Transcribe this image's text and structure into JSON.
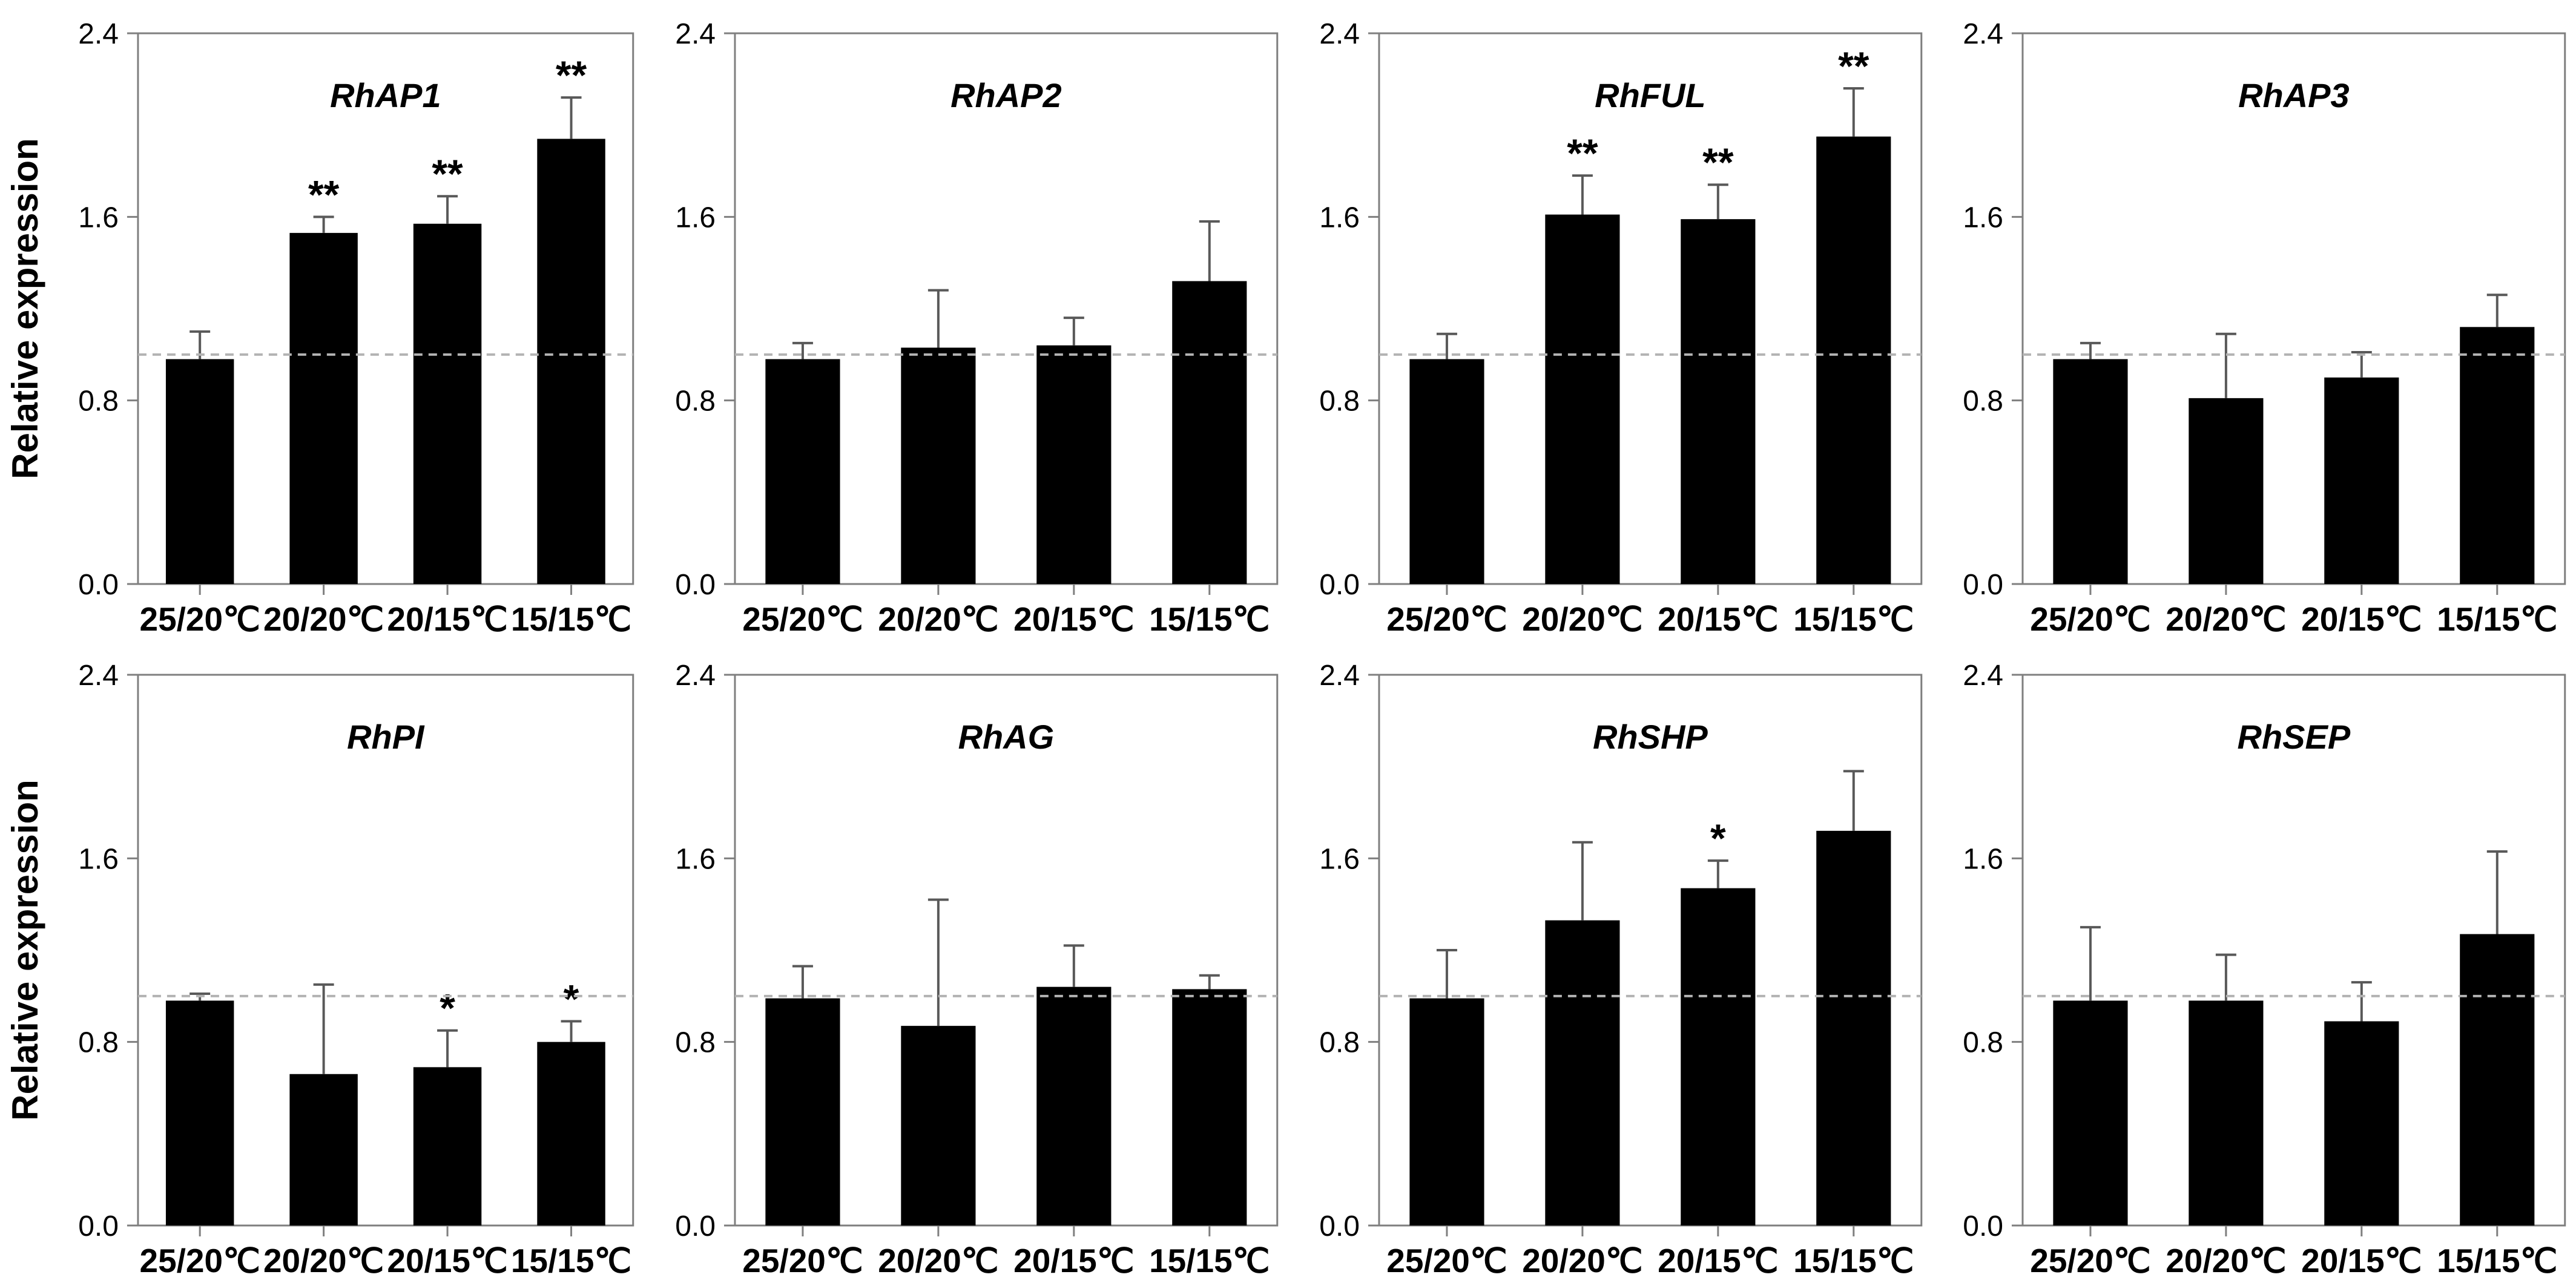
{
  "figure": {
    "ylabel": "Relative expression",
    "ytick_labels": [
      "0.0",
      "0.8",
      "1.6",
      "2.4"
    ],
    "yticks": [
      0.0,
      0.8,
      1.6,
      2.4
    ],
    "ylim": [
      0,
      2.4
    ],
    "baseline_value": 1.0,
    "grid": "off",
    "legend": "none",
    "colors": {
      "bar": "#000000",
      "axis": "#7f7f7f",
      "error_bar": "#595959",
      "baseline_dash": "#b3b3b3",
      "text": "#000000",
      "background": "#ffffff"
    }
  },
  "chart_data": [
    {
      "type": "bar",
      "title": "RhAP1",
      "row": 0,
      "col": 0,
      "show_ylabel": true,
      "categories": [
        "25/20℃",
        "20/20℃",
        "20/15℃",
        "15/15℃"
      ],
      "values": [
        0.98,
        1.53,
        1.57,
        1.94
      ],
      "errors": [
        0.12,
        0.07,
        0.12,
        0.18
      ],
      "sig": [
        "",
        "**",
        "**",
        "**"
      ],
      "xlabel": "",
      "ylabel": "Relative expression",
      "ylim": [
        0,
        2.4
      ]
    },
    {
      "type": "bar",
      "title": "RhAP2",
      "row": 0,
      "col": 1,
      "show_ylabel": false,
      "categories": [
        "25/20℃",
        "20/20℃",
        "20/15℃",
        "15/15℃"
      ],
      "values": [
        0.98,
        1.03,
        1.04,
        1.32
      ],
      "errors": [
        0.07,
        0.25,
        0.12,
        0.26
      ],
      "sig": [
        "",
        "",
        "",
        ""
      ],
      "xlabel": "",
      "ylabel": "",
      "ylim": [
        0,
        2.4
      ]
    },
    {
      "type": "bar",
      "title": "RhFUL",
      "row": 0,
      "col": 2,
      "show_ylabel": false,
      "categories": [
        "25/20℃",
        "20/20℃",
        "20/15℃",
        "15/15℃"
      ],
      "values": [
        0.98,
        1.61,
        1.59,
        1.95
      ],
      "errors": [
        0.11,
        0.17,
        0.15,
        0.21
      ],
      "sig": [
        "",
        "**",
        "**",
        "**"
      ],
      "xlabel": "",
      "ylabel": "",
      "ylim": [
        0,
        2.4
      ]
    },
    {
      "type": "bar",
      "title": "RhAP3",
      "row": 0,
      "col": 3,
      "show_ylabel": false,
      "categories": [
        "25/20℃",
        "20/20℃",
        "20/15℃",
        "15/15℃"
      ],
      "values": [
        0.98,
        0.81,
        0.9,
        1.12
      ],
      "errors": [
        0.07,
        0.28,
        0.11,
        0.14
      ],
      "sig": [
        "",
        "",
        "",
        ""
      ],
      "xlabel": "",
      "ylabel": "",
      "ylim": [
        0,
        2.4
      ]
    },
    {
      "type": "bar",
      "title": "RhPI",
      "row": 1,
      "col": 0,
      "show_ylabel": true,
      "categories": [
        "25/20℃",
        "20/20℃",
        "20/15℃",
        "15/15℃"
      ],
      "values": [
        0.98,
        0.66,
        0.69,
        0.8
      ],
      "errors": [
        0.03,
        0.39,
        0.16,
        0.09
      ],
      "sig": [
        "",
        "",
        "*",
        "*"
      ],
      "xlabel": "",
      "ylabel": "Relative expression",
      "ylim": [
        0,
        2.4
      ]
    },
    {
      "type": "bar",
      "title": "RhAG",
      "row": 1,
      "col": 1,
      "show_ylabel": false,
      "categories": [
        "25/20℃",
        "20/20℃",
        "20/15℃",
        "15/15℃"
      ],
      "values": [
        0.99,
        0.87,
        1.04,
        1.03
      ],
      "errors": [
        0.14,
        0.55,
        0.18,
        0.06
      ],
      "sig": [
        "",
        "",
        "",
        ""
      ],
      "xlabel": "",
      "ylabel": "",
      "ylim": [
        0,
        2.4
      ]
    },
    {
      "type": "bar",
      "title": "RhSHP",
      "row": 1,
      "col": 2,
      "show_ylabel": false,
      "categories": [
        "25/20℃",
        "20/20℃",
        "20/15℃",
        "15/15℃"
      ],
      "values": [
        0.99,
        1.33,
        1.47,
        1.72
      ],
      "errors": [
        0.21,
        0.34,
        0.12,
        0.26
      ],
      "sig": [
        "",
        "",
        "*",
        ""
      ],
      "xlabel": "",
      "ylabel": "",
      "ylim": [
        0,
        2.4
      ]
    },
    {
      "type": "bar",
      "title": "RhSEP",
      "row": 1,
      "col": 3,
      "show_ylabel": false,
      "categories": [
        "25/20℃",
        "20/20℃",
        "20/15℃",
        "15/15℃"
      ],
      "values": [
        0.98,
        0.98,
        0.89,
        1.27
      ],
      "errors": [
        0.32,
        0.2,
        0.17,
        0.36
      ],
      "sig": [
        "",
        "",
        "",
        ""
      ],
      "xlabel": "",
      "ylabel": "",
      "ylim": [
        0,
        2.4
      ]
    }
  ]
}
